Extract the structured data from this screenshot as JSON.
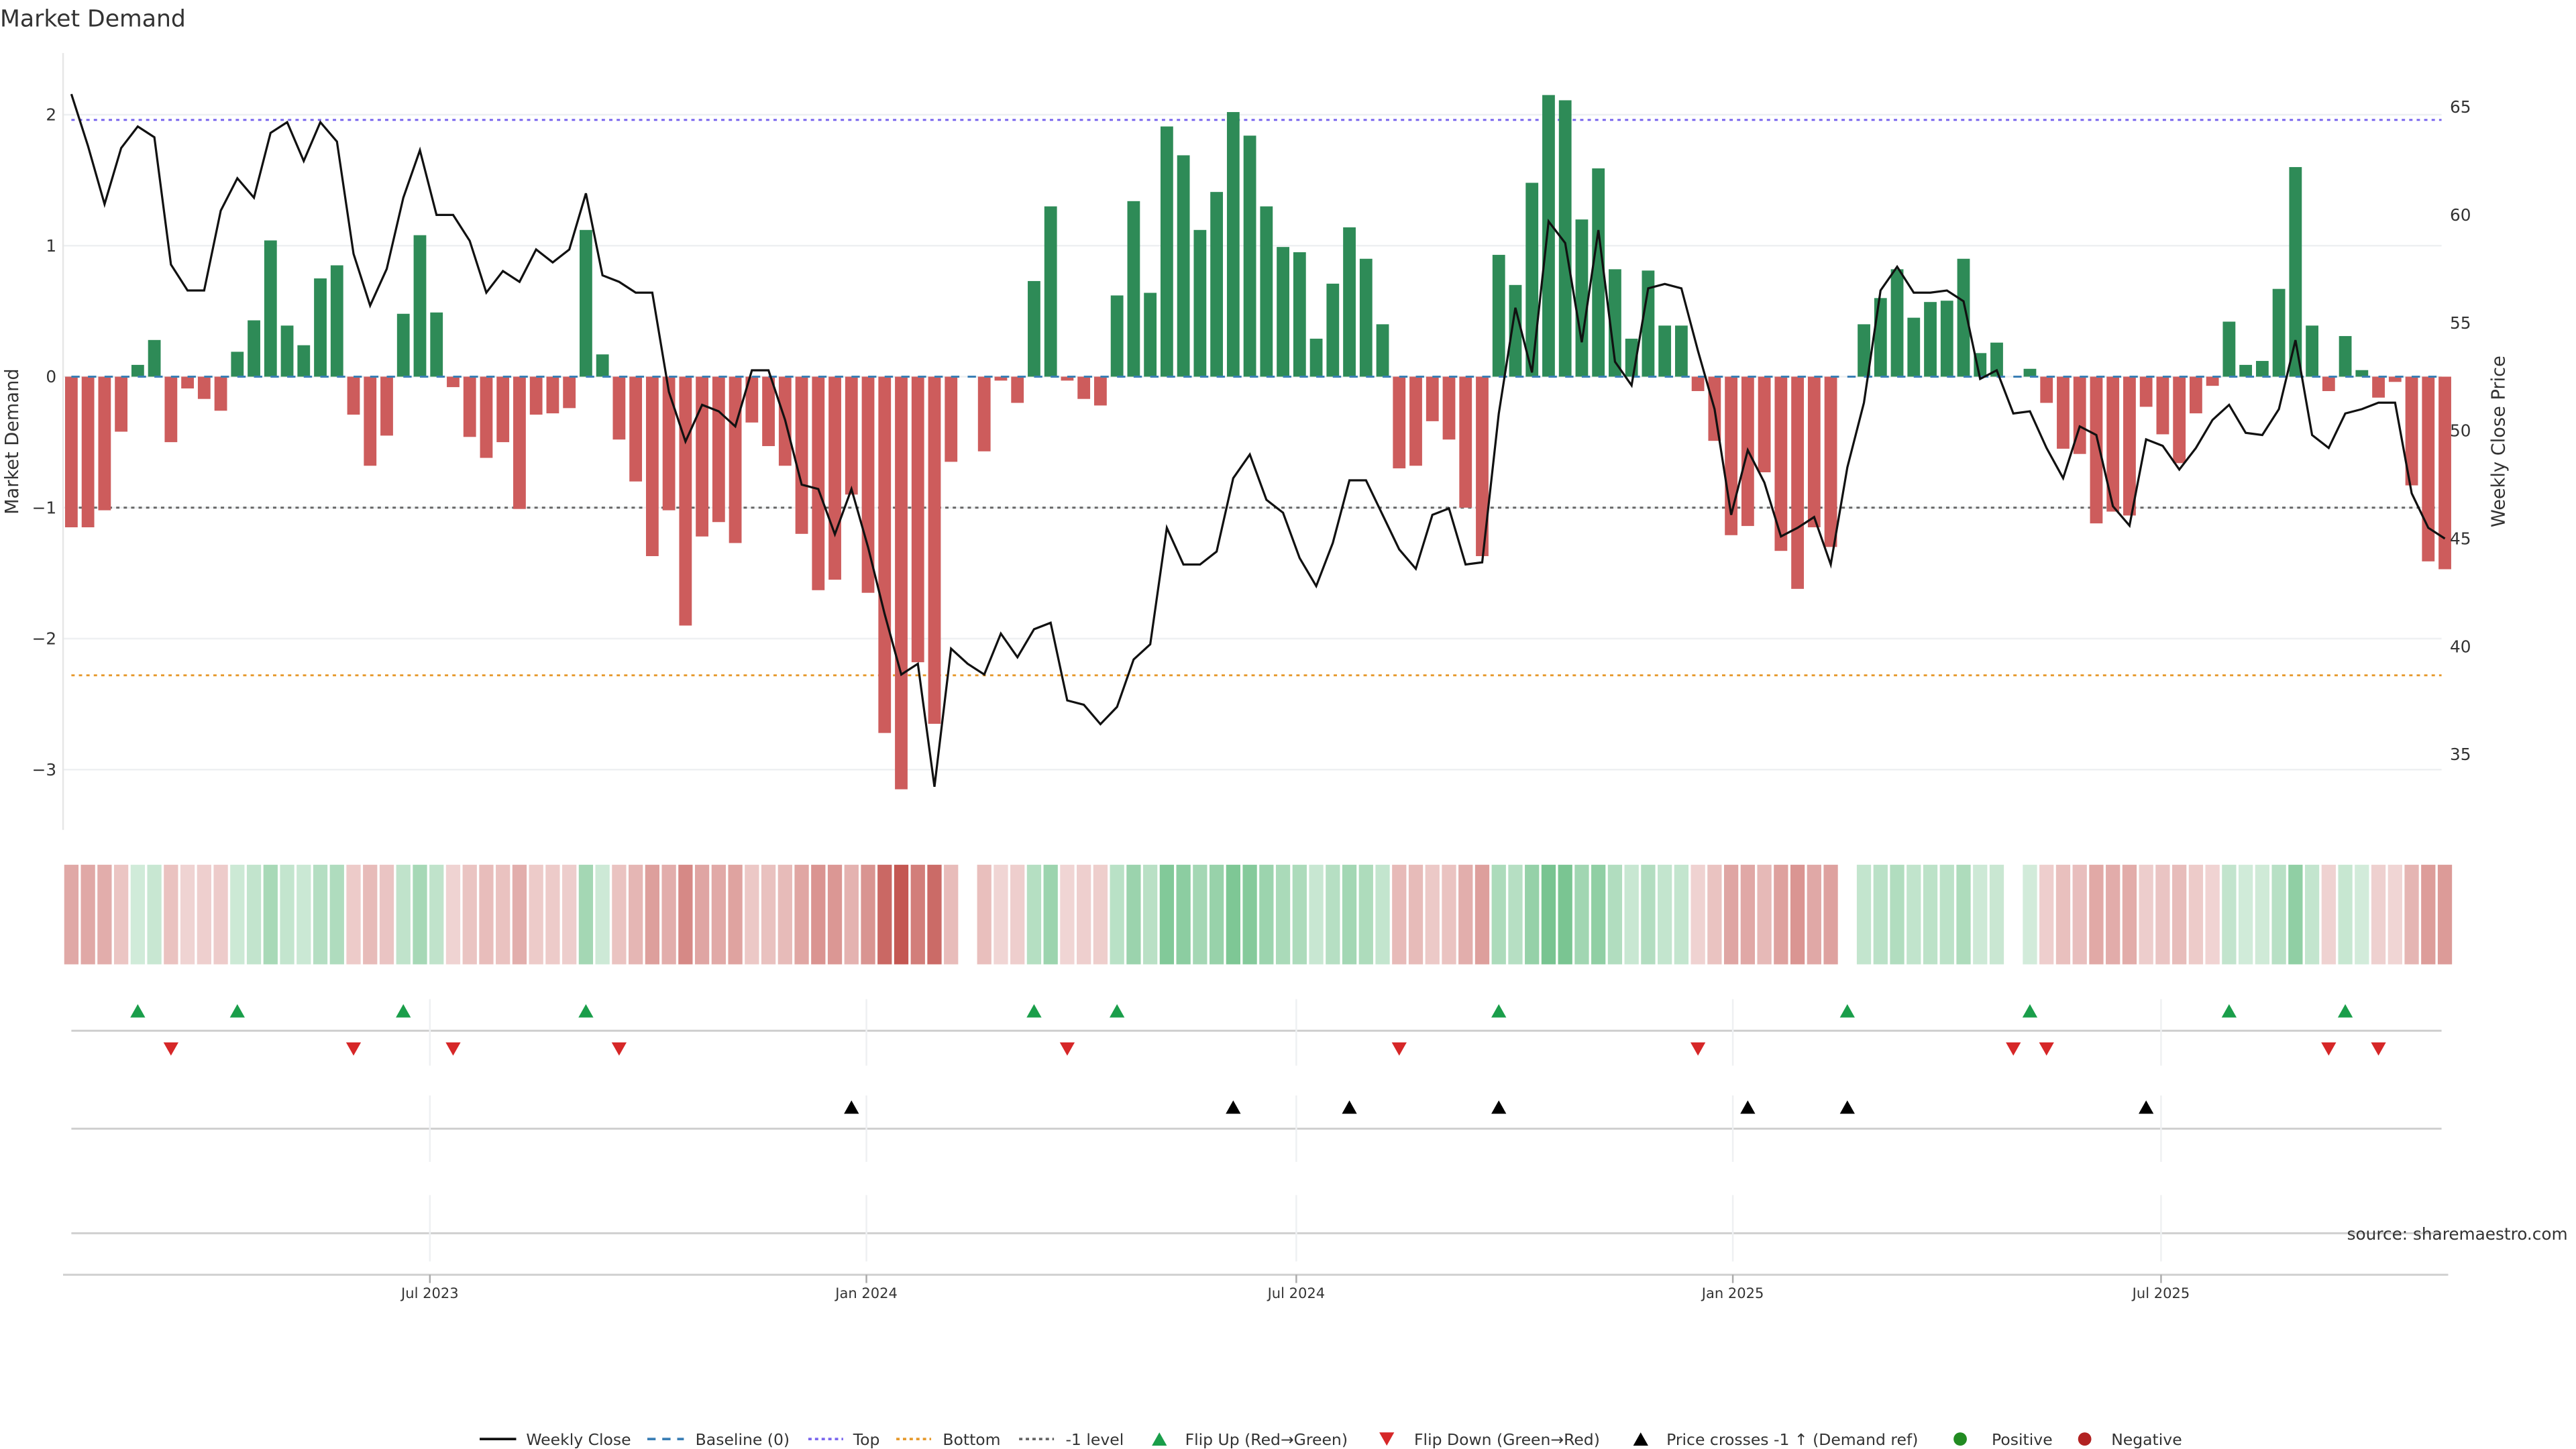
{
  "chart_data": {
    "type": "bar",
    "title": "Market Demand",
    "ylabel": "Market Demand",
    "y2label": "Weekly Close Price",
    "ylim": [
      -3.46,
      2.47
    ],
    "y2lim": [
      31.5,
      67.5
    ],
    "yticks": [
      2,
      1,
      0,
      -1,
      -2,
      -3
    ],
    "yticklabels": [
      "2",
      "1",
      "0",
      "−1",
      "−2",
      "−3"
    ],
    "y2ticks": [
      65,
      60,
      55,
      50,
      45,
      40,
      35
    ],
    "xticks": [
      {
        "week_index": 21.6,
        "label": "Jul 2023"
      },
      {
        "week_index": 47.9,
        "label": "Jan 2024"
      },
      {
        "week_index": 73.8,
        "label": "Jul 2024"
      },
      {
        "week_index": 100.1,
        "label": "Jan 2025"
      },
      {
        "week_index": 125.9,
        "label": "Jul 2025"
      }
    ],
    "reference_lines": {
      "top": 1.96,
      "bottom": -2.28,
      "minus_one": -1,
      "baseline": 0
    },
    "series": [
      {
        "name": "Market Demand",
        "values": [
          -1.15,
          -1.15,
          -1.02,
          -0.42,
          0.09,
          0.28,
          -0.5,
          -0.09,
          -0.17,
          -0.26,
          0.19,
          0.43,
          1.04,
          0.39,
          0.24,
          0.75,
          0.85,
          -0.29,
          -0.68,
          -0.45,
          0.48,
          1.08,
          0.49,
          -0.08,
          -0.46,
          -0.62,
          -0.5,
          -1.01,
          -0.29,
          -0.28,
          -0.24,
          1.12,
          0.17,
          -0.48,
          -0.8,
          -1.37,
          -1.02,
          -1.9,
          -1.22,
          -1.11,
          -1.27,
          -0.35,
          -0.53,
          -0.68,
          -1.2,
          -1.63,
          -1.55,
          -0.9,
          -1.65,
          -2.72,
          -3.15,
          -2.18,
          -2.65,
          -0.65,
          0,
          -0.57,
          -0.03,
          -0.2,
          0.73,
          1.3,
          -0.03,
          -0.17,
          -0.22,
          0.62,
          1.34,
          0.64,
          1.91,
          1.69,
          1.12,
          1.41,
          2.02,
          1.84,
          1.3,
          0.99,
          0.95,
          0.29,
          0.71,
          1.14,
          0.9,
          0.4,
          -0.7,
          -0.68,
          -0.34,
          -0.48,
          -1.0,
          -1.37,
          0.93,
          0.7,
          1.48,
          2.15,
          2.11,
          1.2,
          1.59,
          0.82,
          0.29,
          0.81,
          0.39,
          0.39,
          -0.11,
          -0.49,
          -1.21,
          -1.14,
          -0.73,
          -1.33,
          -1.62,
          -1.15,
          -1.3,
          0,
          0.4,
          0.6,
          0.82,
          0.45,
          0.57,
          0.58,
          0.9,
          0.18,
          0.26,
          0,
          0.06,
          -0.2,
          -0.55,
          -0.59,
          -1.12,
          -1.03,
          -1.06,
          -0.23,
          -0.44,
          -0.66,
          -0.28,
          -0.07,
          0.42,
          0.09,
          0.12,
          0.67,
          1.6,
          0.39,
          -0.11,
          0.31,
          0.05,
          -0.16,
          -0.04,
          -0.83,
          -1.41,
          -1.47
        ]
      },
      {
        "name": "Weekly Close",
        "values": [
          65.6,
          63.2,
          60.5,
          63.1,
          64.1,
          63.6,
          57.7,
          56.5,
          56.5,
          60.2,
          61.7,
          60.8,
          63.8,
          64.3,
          62.5,
          64.3,
          63.4,
          58.2,
          55.8,
          57.5,
          60.8,
          63.0,
          60.0,
          60.0,
          58.8,
          56.4,
          57.4,
          56.9,
          58.4,
          57.8,
          58.4,
          61.0,
          57.2,
          56.9,
          56.4,
          56.4,
          51.8,
          49.5,
          51.2,
          50.9,
          50.2,
          52.8,
          52.8,
          50.5,
          47.5,
          47.3,
          45.2,
          47.3,
          44.6,
          41.5,
          38.7,
          39.2,
          33.5,
          39.9,
          39.2,
          38.7,
          40.6,
          39.5,
          40.8,
          41.1,
          37.5,
          37.3,
          36.4,
          37.2,
          39.4,
          40.1,
          45.5,
          43.8,
          43.8,
          44.4,
          47.8,
          48.9,
          46.8,
          46.2,
          44.1,
          42.8,
          44.8,
          47.7,
          47.7,
          46.1,
          44.5,
          43.6,
          46.1,
          46.4,
          43.8,
          43.9,
          50.8,
          55.7,
          52.7,
          59.7,
          58.7,
          54.1,
          59.3,
          53.2,
          52.1,
          56.6,
          56.8,
          56.6,
          53.7,
          51.0,
          46.1,
          49.1,
          47.6,
          45.1,
          45.5,
          46.0,
          43.8,
          48.3,
          51.3,
          56.5,
          57.6,
          56.4,
          56.4,
          56.5,
          56.0,
          52.4,
          52.8,
          50.8,
          50.9,
          49.2,
          47.8,
          50.2,
          49.8,
          46.5,
          45.6,
          49.6,
          49.3,
          48.2,
          49.2,
          50.5,
          51.2,
          49.9,
          49.8,
          51.0,
          54.2,
          49.8,
          49.2,
          50.8,
          51.0,
          51.3,
          51.3,
          47.1,
          45.5,
          45.0
        ]
      }
    ],
    "events": {
      "flip_up": [
        4,
        10,
        20,
        31,
        58,
        63,
        86,
        107,
        118,
        130,
        137
      ],
      "flip_down": [
        6,
        17,
        23,
        33,
        60,
        80,
        98,
        117,
        119,
        136,
        139
      ],
      "price_crosses_minus1_up": [
        47,
        70,
        77,
        86,
        101,
        107,
        125
      ]
    },
    "legend": {
      "placement": "bottom-center",
      "items": [
        "Weekly Close",
        "Baseline (0)",
        "Top",
        "Bottom",
        "-1 level",
        "Flip Up (Red→Green)",
        "Flip Down (Green→Red)",
        "Price crosses -1 ↑ (Demand ref)",
        "Positive",
        "Negative"
      ]
    },
    "source": "source: sharemaestro.com"
  },
  "colors": {
    "positive": "#2e8b57",
    "negative": "#cd5c5c",
    "price": "#111111",
    "top": "#7b68ee",
    "bottom": "#e69a2e",
    "minus_one": "#666666",
    "baseline": "#3a7fb5",
    "flip_up": "#1a9e4a",
    "flip_down": "#d62728",
    "cross": "#000000",
    "legend_positive": "#228b22",
    "legend_negative": "#b22222"
  }
}
